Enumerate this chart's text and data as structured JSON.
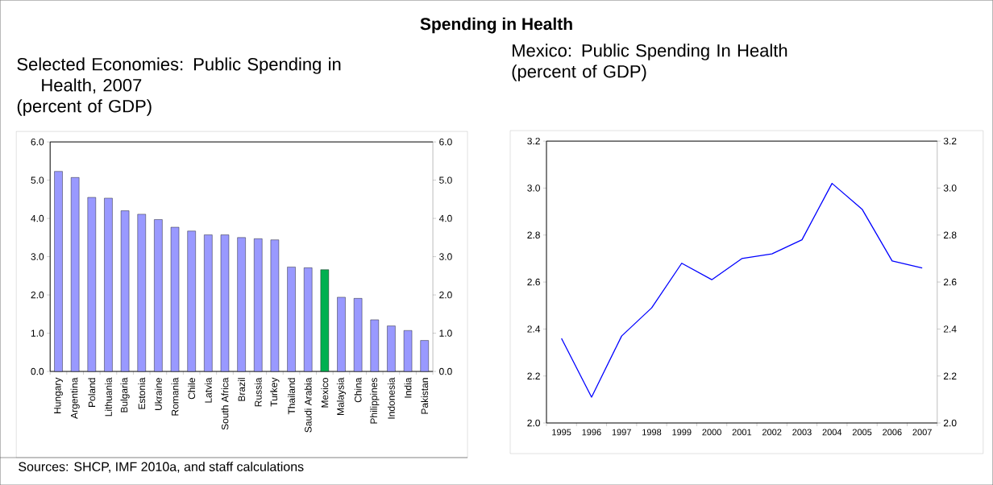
{
  "chart_data": [
    {
      "type": "other",
      "title": "Spending in Health"
    },
    {
      "type": "bar",
      "title": "Selected Economies: Public Spending in Health, 2007",
      "subtitle": "(percent of GDP)",
      "categories": [
        "Hungary",
        "Argentina",
        "Poland",
        "Lithuania",
        "Bulgaria",
        "Estonia",
        "Ukraine",
        "Romania",
        "Chile",
        "Latvia",
        "South Africa",
        "Brazil",
        "Russia",
        "Turkey",
        "Thailand",
        "Saudi Arabia",
        "Mexico",
        "Malaysia",
        "China",
        "Philippines",
        "Indonesia",
        "India",
        "Pakistan"
      ],
      "values": [
        5.23,
        5.07,
        4.55,
        4.53,
        4.2,
        4.11,
        3.97,
        3.77,
        3.67,
        3.57,
        3.57,
        3.5,
        3.47,
        3.44,
        2.73,
        2.71,
        2.66,
        1.94,
        1.91,
        1.35,
        1.19,
        1.07,
        0.81
      ],
      "colors": [
        "#9999ff",
        "#9999ff",
        "#9999ff",
        "#9999ff",
        "#9999ff",
        "#9999ff",
        "#9999ff",
        "#9999ff",
        "#9999ff",
        "#9999ff",
        "#9999ff",
        "#9999ff",
        "#9999ff",
        "#9999ff",
        "#9999ff",
        "#9999ff",
        "#00b050",
        "#9999ff",
        "#9999ff",
        "#9999ff",
        "#9999ff",
        "#9999ff",
        "#9999ff"
      ],
      "ylim": [
        0,
        6
      ],
      "yticks": [
        {
          "value": 0,
          "label": "0.0"
        },
        {
          "value": 1,
          "label": "1.0"
        },
        {
          "value": 2,
          "label": "2.0"
        },
        {
          "value": 3,
          "label": "3.0"
        },
        {
          "value": 4,
          "label": "4.0"
        },
        {
          "value": 5,
          "label": "5.0"
        },
        {
          "value": 6,
          "label": "6.0"
        }
      ],
      "y2lim": [
        0,
        6
      ],
      "y2ticks": [
        {
          "value": 0,
          "label": "0.0"
        },
        {
          "value": 1,
          "label": "1.0"
        },
        {
          "value": 2,
          "label": "2.0"
        },
        {
          "value": 3,
          "label": "3.0"
        },
        {
          "value": 4,
          "label": "4.0"
        },
        {
          "value": 5,
          "label": "5.0"
        },
        {
          "value": 6,
          "label": "6.0"
        }
      ],
      "annotations": [
        "Sources: SHCP, IMF 2010a, and staff calculations"
      ]
    },
    {
      "type": "line",
      "title": "Mexico: Public Spending In Health",
      "subtitle": "(percent of GDP)",
      "categories": [
        "1995",
        "1996",
        "1997",
        "1998",
        "1999",
        "2000",
        "2001",
        "2002",
        "2003",
        "2004",
        "2005",
        "2006",
        "2007"
      ],
      "series": [
        {
          "color": "#0000ff",
          "values": [
            2.36,
            2.11,
            2.37,
            2.49,
            2.68,
            2.61,
            2.7,
            2.72,
            2.78,
            3.02,
            2.91,
            2.69,
            2.66
          ]
        }
      ],
      "marker": "none",
      "ylim": [
        2.0,
        3.2
      ],
      "yticks": [
        {
          "value": 2.0,
          "label": "2.0"
        },
        {
          "value": 2.2,
          "label": "2.2"
        },
        {
          "value": 2.4,
          "label": "2.4"
        },
        {
          "value": 2.6,
          "label": "2.6"
        },
        {
          "value": 2.8,
          "label": "2.8"
        },
        {
          "value": 3.0,
          "label": "3.0"
        },
        {
          "value": 3.2,
          "label": "3.2"
        }
      ],
      "y2lim": [
        2.0,
        3.2
      ],
      "y2ticks": [
        {
          "value": 2.0,
          "label": "2.0"
        },
        {
          "value": 2.2,
          "label": "2.2"
        },
        {
          "value": 2.4,
          "label": "2.4"
        },
        {
          "value": 2.6,
          "label": "2.6"
        },
        {
          "value": 2.8,
          "label": "2.8"
        },
        {
          "value": 3.0,
          "label": "3.0"
        },
        {
          "value": 3.2,
          "label": "3.2"
        }
      ]
    }
  ]
}
